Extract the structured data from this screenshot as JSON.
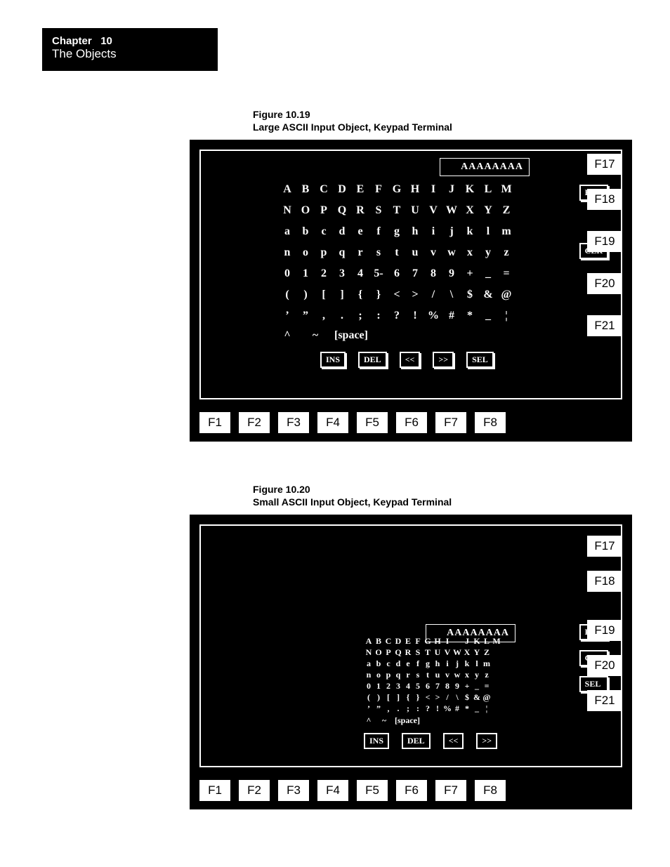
{
  "chapter": {
    "label": "Chapter",
    "number": "10",
    "title": "The Objects"
  },
  "figures": [
    {
      "num": "Figure 10.19",
      "caption": "Large ASCII Input Object, Keypad Terminal"
    },
    {
      "num": "Figure 10.20",
      "caption": "Small ASCII Input Object, Keypad Terminal"
    }
  ],
  "common": {
    "display_value": "AAAAAAAA",
    "btn_ent": "ENT",
    "btn_clr": "CLR",
    "btn_sel": "SEL",
    "btn_ins": "INS",
    "btn_del": "DEL",
    "btn_prev": "<<",
    "btn_next": ">>",
    "space_label": "[space]",
    "side_fkeys": [
      "F17",
      "F18",
      "F19",
      "F20",
      "F21"
    ],
    "bottom_fkeys": [
      "F1",
      "F2",
      "F3",
      "F4",
      "F5",
      "F6",
      "F7",
      "F8"
    ]
  },
  "grid_large": {
    "rows": [
      [
        "A",
        "B",
        "C",
        "D",
        "E",
        "F",
        "G",
        "H",
        "I",
        "J",
        "K",
        "L",
        "M"
      ],
      [
        "N",
        "O",
        "P",
        "Q",
        "R",
        "S",
        "T",
        "U",
        "V",
        "W",
        "X",
        "Y",
        "Z"
      ],
      [
        "a",
        "b",
        "c",
        "d",
        "e",
        "f",
        "g",
        "h",
        "i",
        "j",
        "k",
        "l",
        "m"
      ],
      [
        "n",
        "o",
        "p",
        "q",
        "r",
        "s",
        "t",
        "u",
        "v",
        "w",
        "x",
        "y",
        "z"
      ],
      [
        "0",
        "1",
        "2",
        "3",
        "4",
        "5-",
        "6",
        "7",
        "8",
        "9",
        "+",
        "_",
        "="
      ],
      [
        "(",
        ")",
        "[",
        "]",
        "{",
        "}",
        "<",
        ">",
        "/",
        "\\",
        "$",
        "&",
        "@"
      ],
      [
        "’",
        "”",
        ",",
        ".",
        ";",
        ":",
        "?",
        "!",
        "%",
        "#",
        "*",
        "_",
        "¦"
      ]
    ],
    "tail": [
      "^",
      "~"
    ]
  },
  "grid_small": {
    "rows": [
      [
        "A",
        "B",
        "C",
        "D",
        "E",
        "F",
        "G",
        "H",
        "I",
        "",
        "J",
        "K",
        "L",
        "M"
      ],
      [
        "N",
        "O",
        "P",
        "Q",
        "R",
        "S",
        "T",
        "U",
        "V",
        "W",
        "X",
        "Y",
        "Z"
      ],
      [
        "a",
        "b",
        "c",
        "d",
        "e",
        "f",
        "g",
        "h",
        "i",
        "j",
        "k",
        "l",
        "m"
      ],
      [
        "n",
        "o",
        "p",
        "q",
        "r",
        "s",
        "t",
        "u",
        "v",
        "w",
        "x",
        "y",
        "z"
      ],
      [
        "0",
        "1",
        "2",
        "3",
        "4",
        "5",
        "6",
        "7",
        "8",
        "9",
        "+",
        "_",
        "="
      ],
      [
        "(",
        ")",
        "[",
        "]",
        "{",
        "}",
        "<",
        ">",
        "/",
        "\\",
        "$",
        "&",
        "@"
      ],
      [
        "’",
        "”",
        ",",
        ".",
        ";",
        ":",
        "?",
        "!",
        "%",
        "#",
        "*",
        "_",
        "¦"
      ]
    ],
    "tail": [
      "^",
      "~"
    ]
  },
  "style": {
    "bg": "#000000",
    "fg": "#ffffff",
    "page_bg": "#ffffff",
    "font_chapter": 15,
    "font_caption": 14,
    "large_cell_w": 26,
    "small_cell_w": 14
  }
}
